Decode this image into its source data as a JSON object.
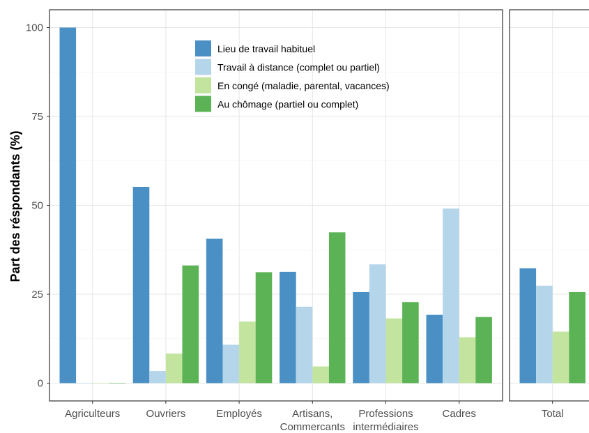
{
  "chart_data": {
    "type": "bar",
    "ylabel": "Part des réspondants (%)",
    "ylim": [
      -5,
      105
    ],
    "yticks": [
      0,
      25,
      50,
      75,
      100
    ],
    "grid": true,
    "legend_position": "top-center",
    "series": [
      {
        "name": "Lieu de travail habituel",
        "color": "#4a90c4"
      },
      {
        "name": "Travail à distance (complet ou partiel)",
        "color": "#b5d6ea"
      },
      {
        "name": "En congé (maladie, parental, vacances)",
        "color": "#c2e49e"
      },
      {
        "name": "Au chômage (partiel ou complet)",
        "color": "#5bb355"
      }
    ],
    "panels": [
      {
        "categories": [
          {
            "label": [
              "Agriculteurs"
            ],
            "values": [
              100,
              0,
              0,
              0
            ]
          },
          {
            "label": [
              "Ouvriers"
            ],
            "values": [
              55.2,
              3.4,
              8.3,
              33.1
            ]
          },
          {
            "label": [
              "Employés"
            ],
            "values": [
              40.6,
              10.8,
              17.3,
              31.2
            ]
          },
          {
            "label": [
              "Artisans,",
              "Commercants"
            ],
            "values": [
              31.3,
              21.5,
              4.7,
              42.4
            ]
          },
          {
            "label": [
              "Professions",
              "intermédiaires"
            ],
            "values": [
              25.6,
              33.4,
              18.2,
              22.8
            ]
          },
          {
            "label": [
              "Cadres"
            ],
            "values": [
              19.2,
              49.1,
              12.9,
              18.6
            ]
          }
        ]
      },
      {
        "categories": [
          {
            "label": [
              "Total"
            ],
            "values": [
              32.3,
              27.4,
              14.5,
              25.6
            ]
          }
        ]
      }
    ]
  }
}
